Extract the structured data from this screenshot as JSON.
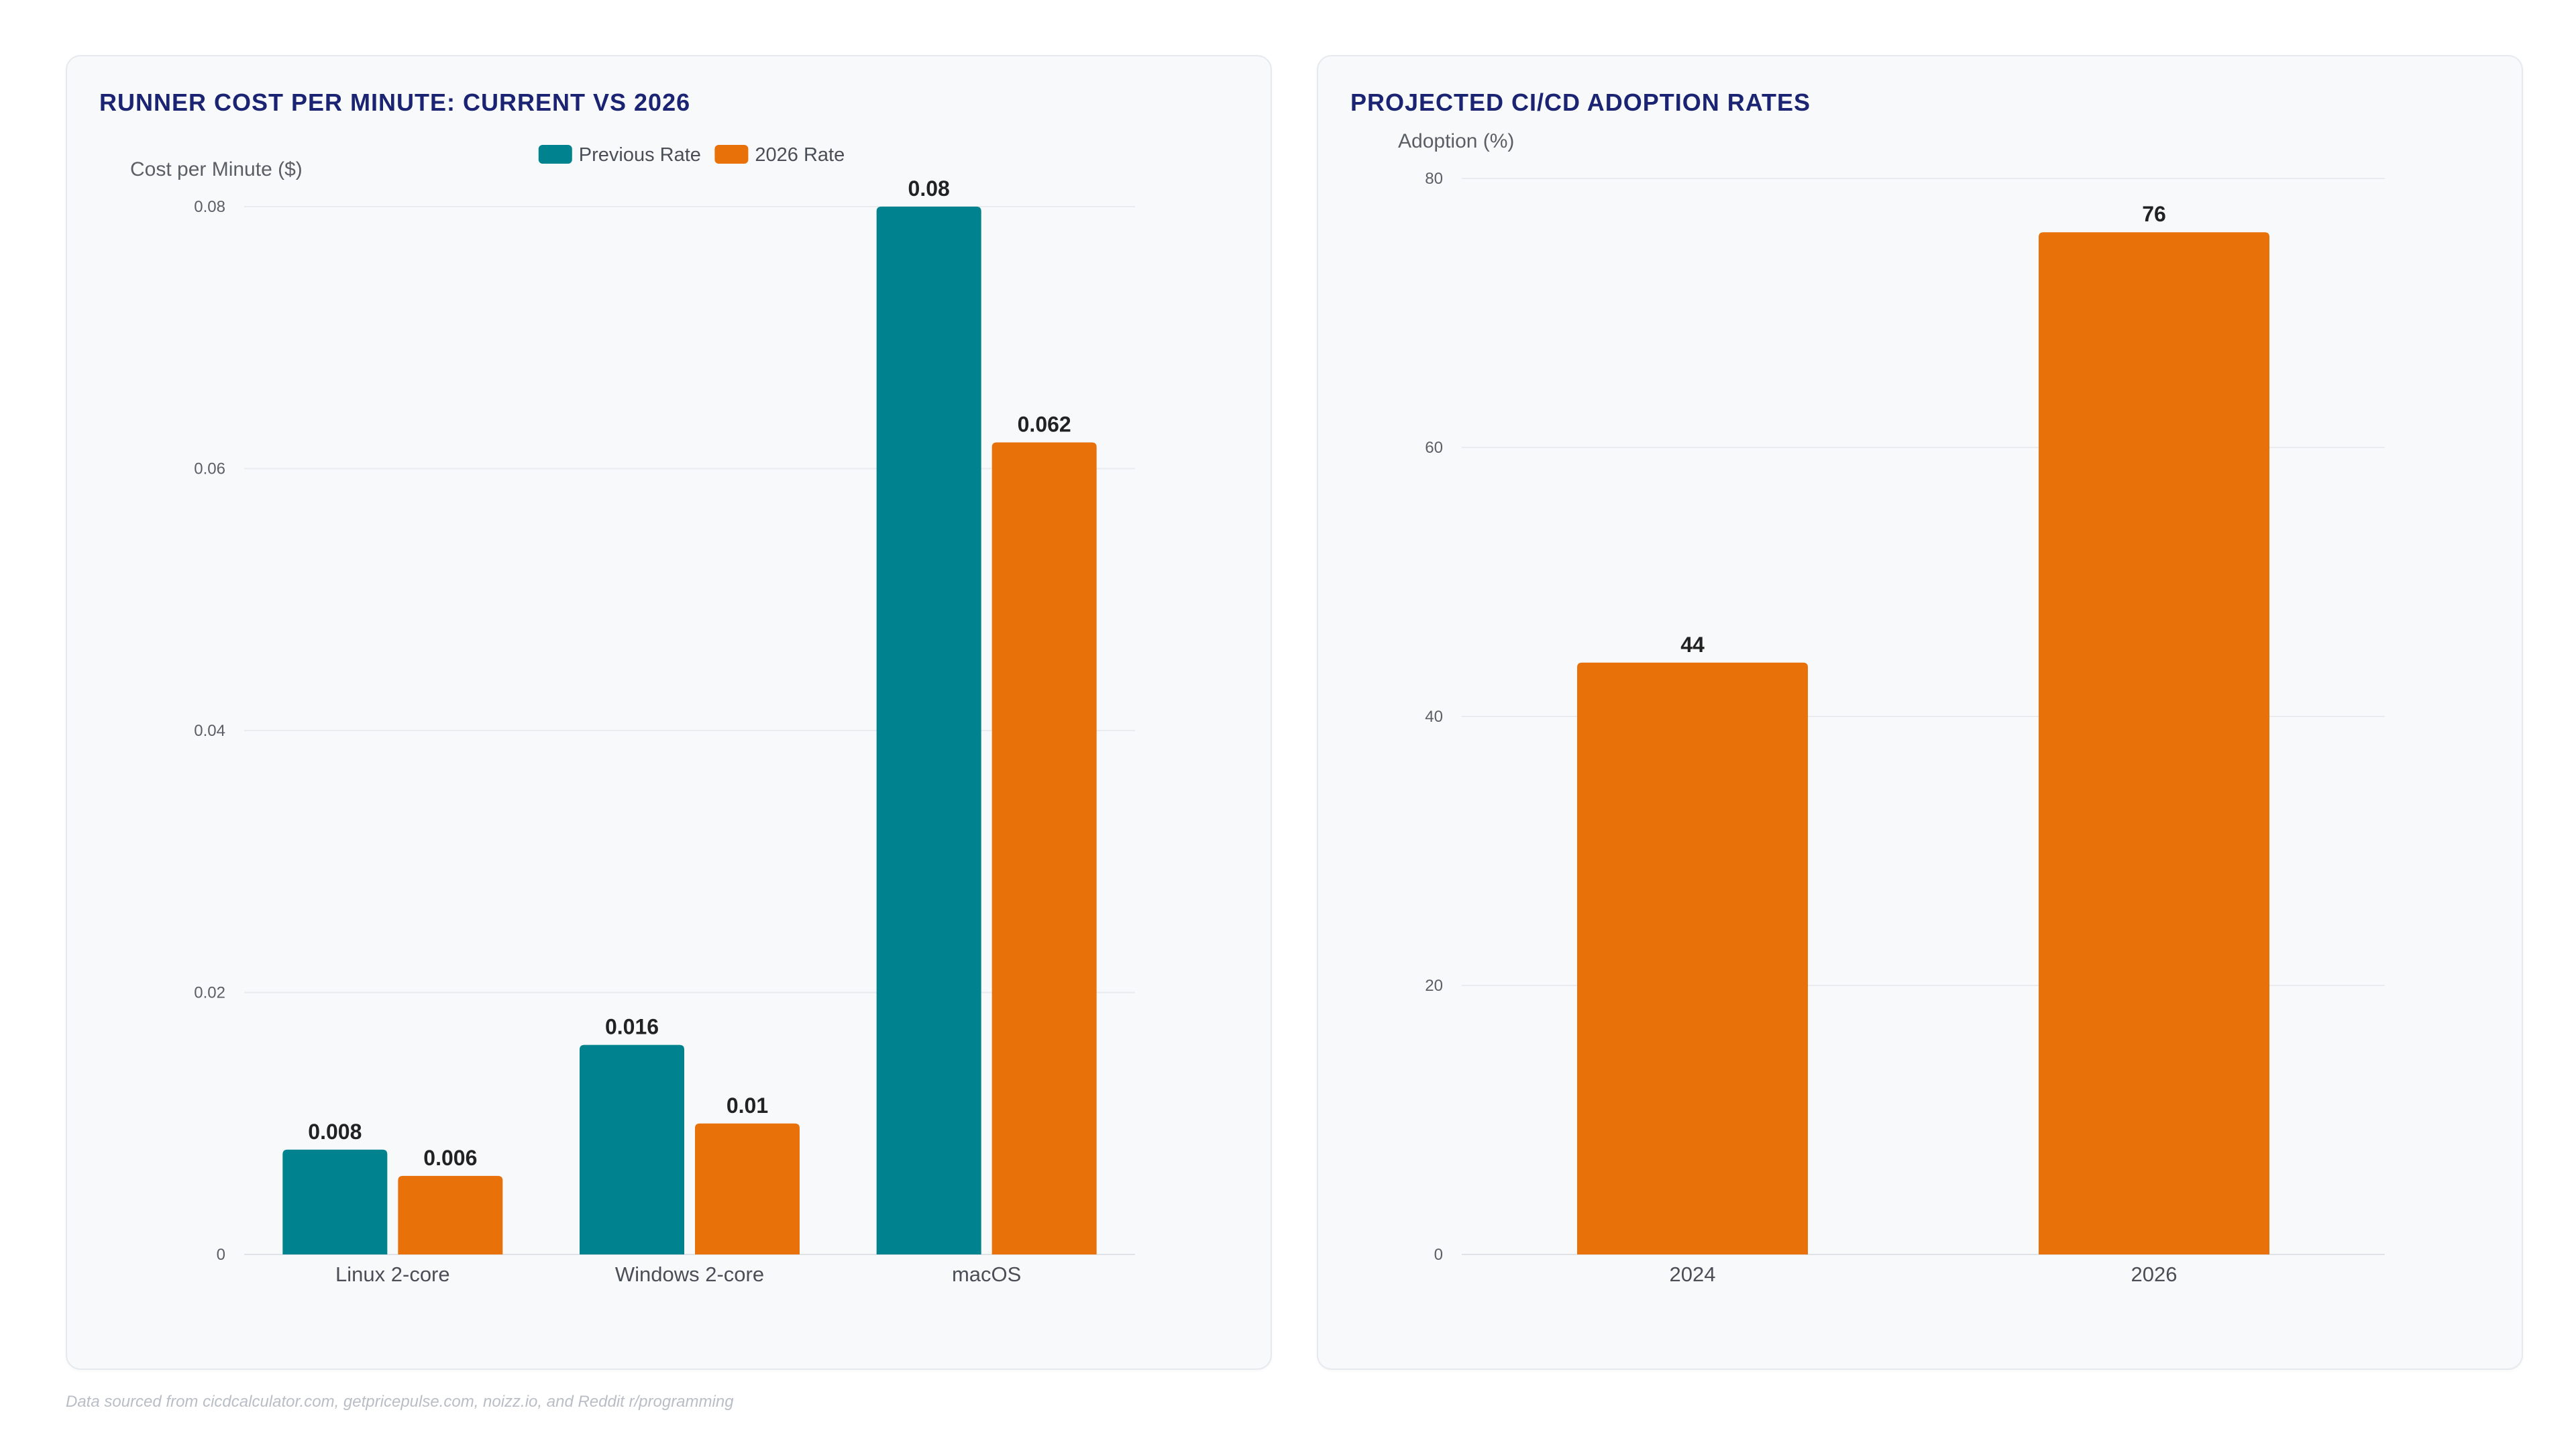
{
  "footer": "Data sourced from cicdcalculator.com, getpricepulse.com, noizz.io, and Reddit r/programming",
  "colors": {
    "teal": "#00838f",
    "orange": "#e8710a",
    "title": "#1a2472"
  },
  "chart_data": [
    {
      "type": "bar",
      "title": "RUNNER COST PER MINUTE: CURRENT VS 2026",
      "ylabel": "Cost per Minute ($)",
      "xlabel": "",
      "categories": [
        "Linux 2-core",
        "Windows 2-core",
        "macOS"
      ],
      "series": [
        {
          "name": "Previous Rate",
          "color": "#00838f",
          "values": [
            0.008,
            0.016,
            0.08
          ],
          "labels": [
            "0.008",
            "0.016",
            "0.08"
          ]
        },
        {
          "name": "2026 Rate",
          "color": "#e8710a",
          "values": [
            0.006,
            0.01,
            0.062
          ],
          "labels": [
            "0.006",
            "0.01",
            "0.062"
          ]
        }
      ],
      "ylim": [
        0,
        0.08
      ],
      "yticks": [
        0,
        0.02,
        0.04,
        0.06,
        0.08
      ],
      "ytick_labels": [
        "0",
        "0.02",
        "0.04",
        "0.06",
        "0.08"
      ],
      "grid": true,
      "legend": "top-center"
    },
    {
      "type": "bar",
      "title": "PROJECTED CI/CD ADOPTION RATES",
      "ylabel": "Adoption (%)",
      "xlabel": "",
      "categories": [
        "2024",
        "2026"
      ],
      "series": [
        {
          "color": "#e8710a",
          "values": [
            44,
            76
          ],
          "labels": [
            "44",
            "76"
          ]
        }
      ],
      "ylim": [
        0,
        80
      ],
      "yticks": [
        0,
        20,
        40,
        60,
        80
      ],
      "ytick_labels": [
        "0",
        "20",
        "40",
        "60",
        "80"
      ],
      "grid": true,
      "legend": "none"
    }
  ]
}
